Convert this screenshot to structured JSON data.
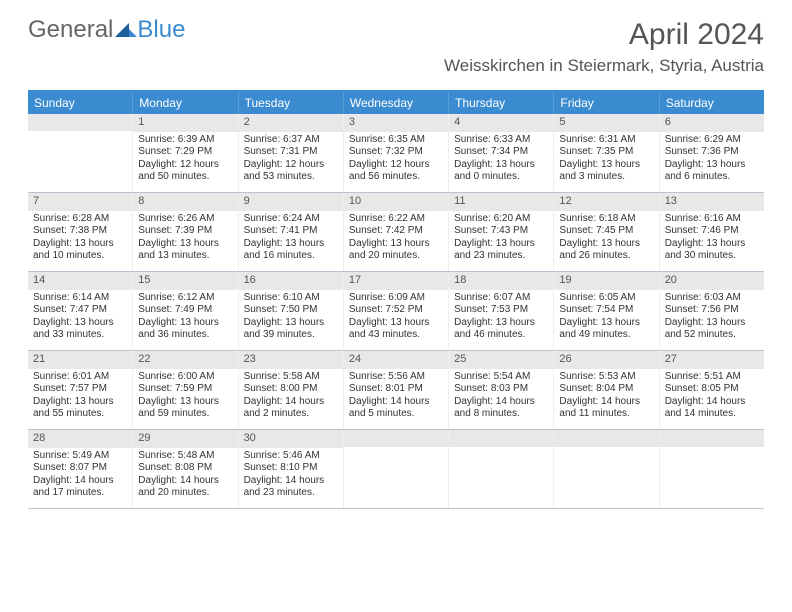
{
  "brand": {
    "part1": "General",
    "part2": "Blue"
  },
  "title": "April 2024",
  "location": "Weisskirchen in Steiermark, Styria, Austria",
  "colors": {
    "header_bg": "#3b8bd0",
    "header_text": "#ffffff",
    "daynum_bg": "#e8e8e8",
    "border": "#b8c5d0",
    "text": "#333333"
  },
  "weekdays": [
    "Sunday",
    "Monday",
    "Tuesday",
    "Wednesday",
    "Thursday",
    "Friday",
    "Saturday"
  ],
  "weeks": [
    [
      {
        "n": "",
        "sunrise": "",
        "sunset": "",
        "daylight": ""
      },
      {
        "n": "1",
        "sunrise": "Sunrise: 6:39 AM",
        "sunset": "Sunset: 7:29 PM",
        "daylight": "Daylight: 12 hours and 50 minutes."
      },
      {
        "n": "2",
        "sunrise": "Sunrise: 6:37 AM",
        "sunset": "Sunset: 7:31 PM",
        "daylight": "Daylight: 12 hours and 53 minutes."
      },
      {
        "n": "3",
        "sunrise": "Sunrise: 6:35 AM",
        "sunset": "Sunset: 7:32 PM",
        "daylight": "Daylight: 12 hours and 56 minutes."
      },
      {
        "n": "4",
        "sunrise": "Sunrise: 6:33 AM",
        "sunset": "Sunset: 7:34 PM",
        "daylight": "Daylight: 13 hours and 0 minutes."
      },
      {
        "n": "5",
        "sunrise": "Sunrise: 6:31 AM",
        "sunset": "Sunset: 7:35 PM",
        "daylight": "Daylight: 13 hours and 3 minutes."
      },
      {
        "n": "6",
        "sunrise": "Sunrise: 6:29 AM",
        "sunset": "Sunset: 7:36 PM",
        "daylight": "Daylight: 13 hours and 6 minutes."
      }
    ],
    [
      {
        "n": "7",
        "sunrise": "Sunrise: 6:28 AM",
        "sunset": "Sunset: 7:38 PM",
        "daylight": "Daylight: 13 hours and 10 minutes."
      },
      {
        "n": "8",
        "sunrise": "Sunrise: 6:26 AM",
        "sunset": "Sunset: 7:39 PM",
        "daylight": "Daylight: 13 hours and 13 minutes."
      },
      {
        "n": "9",
        "sunrise": "Sunrise: 6:24 AM",
        "sunset": "Sunset: 7:41 PM",
        "daylight": "Daylight: 13 hours and 16 minutes."
      },
      {
        "n": "10",
        "sunrise": "Sunrise: 6:22 AM",
        "sunset": "Sunset: 7:42 PM",
        "daylight": "Daylight: 13 hours and 20 minutes."
      },
      {
        "n": "11",
        "sunrise": "Sunrise: 6:20 AM",
        "sunset": "Sunset: 7:43 PM",
        "daylight": "Daylight: 13 hours and 23 minutes."
      },
      {
        "n": "12",
        "sunrise": "Sunrise: 6:18 AM",
        "sunset": "Sunset: 7:45 PM",
        "daylight": "Daylight: 13 hours and 26 minutes."
      },
      {
        "n": "13",
        "sunrise": "Sunrise: 6:16 AM",
        "sunset": "Sunset: 7:46 PM",
        "daylight": "Daylight: 13 hours and 30 minutes."
      }
    ],
    [
      {
        "n": "14",
        "sunrise": "Sunrise: 6:14 AM",
        "sunset": "Sunset: 7:47 PM",
        "daylight": "Daylight: 13 hours and 33 minutes."
      },
      {
        "n": "15",
        "sunrise": "Sunrise: 6:12 AM",
        "sunset": "Sunset: 7:49 PM",
        "daylight": "Daylight: 13 hours and 36 minutes."
      },
      {
        "n": "16",
        "sunrise": "Sunrise: 6:10 AM",
        "sunset": "Sunset: 7:50 PM",
        "daylight": "Daylight: 13 hours and 39 minutes."
      },
      {
        "n": "17",
        "sunrise": "Sunrise: 6:09 AM",
        "sunset": "Sunset: 7:52 PM",
        "daylight": "Daylight: 13 hours and 43 minutes."
      },
      {
        "n": "18",
        "sunrise": "Sunrise: 6:07 AM",
        "sunset": "Sunset: 7:53 PM",
        "daylight": "Daylight: 13 hours and 46 minutes."
      },
      {
        "n": "19",
        "sunrise": "Sunrise: 6:05 AM",
        "sunset": "Sunset: 7:54 PM",
        "daylight": "Daylight: 13 hours and 49 minutes."
      },
      {
        "n": "20",
        "sunrise": "Sunrise: 6:03 AM",
        "sunset": "Sunset: 7:56 PM",
        "daylight": "Daylight: 13 hours and 52 minutes."
      }
    ],
    [
      {
        "n": "21",
        "sunrise": "Sunrise: 6:01 AM",
        "sunset": "Sunset: 7:57 PM",
        "daylight": "Daylight: 13 hours and 55 minutes."
      },
      {
        "n": "22",
        "sunrise": "Sunrise: 6:00 AM",
        "sunset": "Sunset: 7:59 PM",
        "daylight": "Daylight: 13 hours and 59 minutes."
      },
      {
        "n": "23",
        "sunrise": "Sunrise: 5:58 AM",
        "sunset": "Sunset: 8:00 PM",
        "daylight": "Daylight: 14 hours and 2 minutes."
      },
      {
        "n": "24",
        "sunrise": "Sunrise: 5:56 AM",
        "sunset": "Sunset: 8:01 PM",
        "daylight": "Daylight: 14 hours and 5 minutes."
      },
      {
        "n": "25",
        "sunrise": "Sunrise: 5:54 AM",
        "sunset": "Sunset: 8:03 PM",
        "daylight": "Daylight: 14 hours and 8 minutes."
      },
      {
        "n": "26",
        "sunrise": "Sunrise: 5:53 AM",
        "sunset": "Sunset: 8:04 PM",
        "daylight": "Daylight: 14 hours and 11 minutes."
      },
      {
        "n": "27",
        "sunrise": "Sunrise: 5:51 AM",
        "sunset": "Sunset: 8:05 PM",
        "daylight": "Daylight: 14 hours and 14 minutes."
      }
    ],
    [
      {
        "n": "28",
        "sunrise": "Sunrise: 5:49 AM",
        "sunset": "Sunset: 8:07 PM",
        "daylight": "Daylight: 14 hours and 17 minutes."
      },
      {
        "n": "29",
        "sunrise": "Sunrise: 5:48 AM",
        "sunset": "Sunset: 8:08 PM",
        "daylight": "Daylight: 14 hours and 20 minutes."
      },
      {
        "n": "30",
        "sunrise": "Sunrise: 5:46 AM",
        "sunset": "Sunset: 8:10 PM",
        "daylight": "Daylight: 14 hours and 23 minutes."
      },
      {
        "n": "",
        "sunrise": "",
        "sunset": "",
        "daylight": ""
      },
      {
        "n": "",
        "sunrise": "",
        "sunset": "",
        "daylight": ""
      },
      {
        "n": "",
        "sunrise": "",
        "sunset": "",
        "daylight": ""
      },
      {
        "n": "",
        "sunrise": "",
        "sunset": "",
        "daylight": ""
      }
    ]
  ]
}
